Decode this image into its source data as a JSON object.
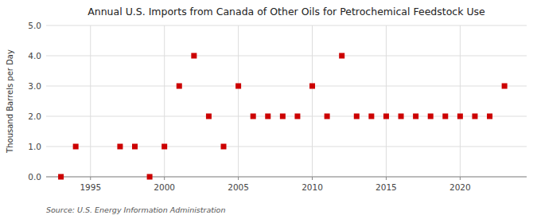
{
  "chart_data": {
    "type": "scatter",
    "title": "Annual U.S. Imports from Canada of Other Oils for Petrochemical Feedstock Use",
    "ylabel": "Thousand Barrels per Day",
    "source": "Source: U.S. Energy Information Administration",
    "x": [
      1993,
      1994,
      1997,
      1998,
      1999,
      2000,
      2001,
      2002,
      2003,
      2004,
      2005,
      2006,
      2007,
      2008,
      2009,
      2010,
      2011,
      2012,
      2013,
      2014,
      2015,
      2016,
      2017,
      2018,
      2019,
      2020,
      2021,
      2022,
      2023
    ],
    "values": [
      0,
      1,
      1,
      1,
      0,
      1,
      3,
      4,
      2,
      1,
      3,
      2,
      2,
      2,
      2,
      3,
      2,
      4,
      2,
      2,
      2,
      2,
      2,
      2,
      2,
      2,
      2,
      2,
      3
    ],
    "xlim": [
      1992,
      2024.5
    ],
    "ylim": [
      0,
      5.0
    ],
    "xticks": [
      1995,
      2000,
      2005,
      2010,
      2015,
      2020
    ],
    "yticks": [
      {
        "value": 0.0,
        "label": "0.0"
      },
      {
        "value": 1.0,
        "label": "1.0"
      },
      {
        "value": 2.0,
        "label": "2.0"
      },
      {
        "value": 3.0,
        "label": "3.0"
      },
      {
        "value": 4.0,
        "label": "4.0"
      },
      {
        "value": 5.0,
        "label": "5.0"
      }
    ],
    "color": "#cc0000",
    "marker": "square",
    "grid": true
  }
}
